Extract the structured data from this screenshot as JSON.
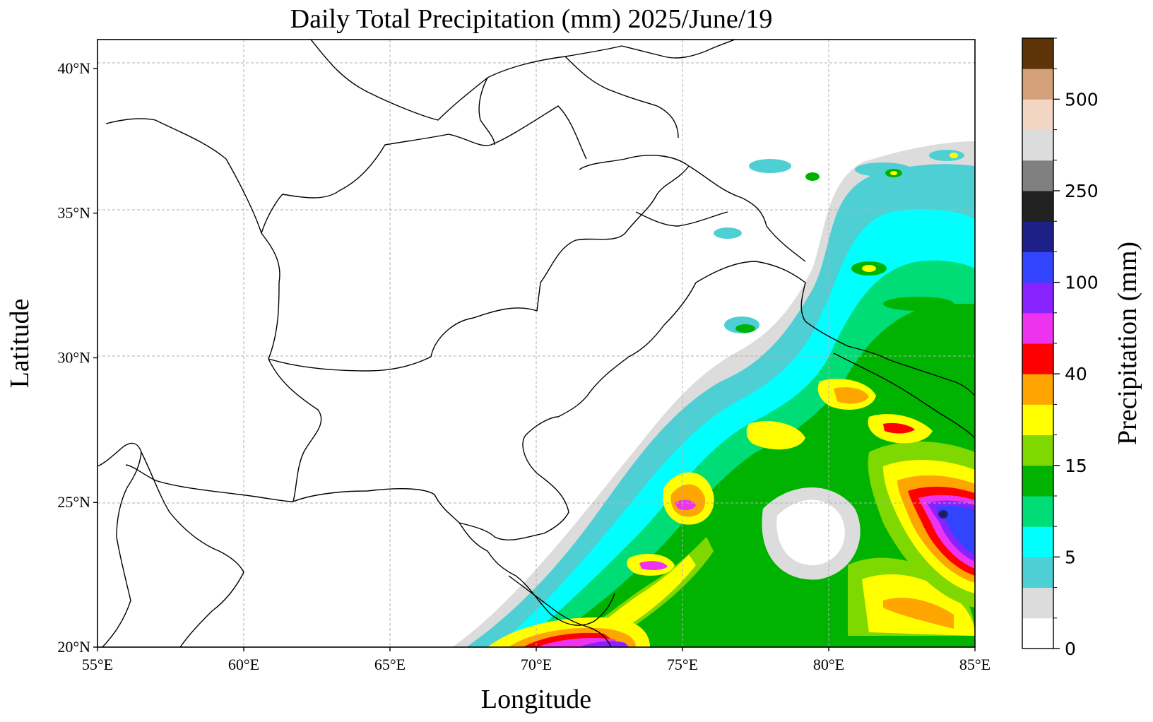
{
  "title": "Daily Total Precipitation (mm)  2025/June/19",
  "xlabel": "Longitude",
  "ylabel": "Latitude",
  "colorbar": {
    "title": "Precipitation (mm)",
    "tick_labels": [
      "0",
      "5",
      "15",
      "40",
      "100",
      "250",
      "500"
    ],
    "colors": [
      "#ffffff",
      "#dcdcdc",
      "#4ecfd4",
      "#00ffff",
      "#00dd77",
      "#00b300",
      "#7fd800",
      "#ffff00",
      "#ffa500",
      "#ff0000",
      "#ee33ee",
      "#8822ff",
      "#3344ff",
      "#1f1f88",
      "#222222",
      "#808080",
      "#dcdcdc",
      "#f2d6c3",
      "#d4a07a",
      "#5c3408"
    ]
  },
  "map": {
    "lon_range": [
      55,
      85
    ],
    "lat_range": [
      20,
      41
    ],
    "x_ticks": [
      "55°E",
      "60°E",
      "65°E",
      "70°E",
      "75°E",
      "80°E",
      "85°E"
    ],
    "y_ticks": [
      "20°N",
      "25°N",
      "30°N",
      "35°N",
      "40°N"
    ],
    "x_tick_values": [
      55,
      60,
      65,
      70,
      75,
      80,
      85
    ],
    "y_tick_values": [
      20,
      25,
      30,
      35,
      40
    ],
    "grid": true
  }
}
